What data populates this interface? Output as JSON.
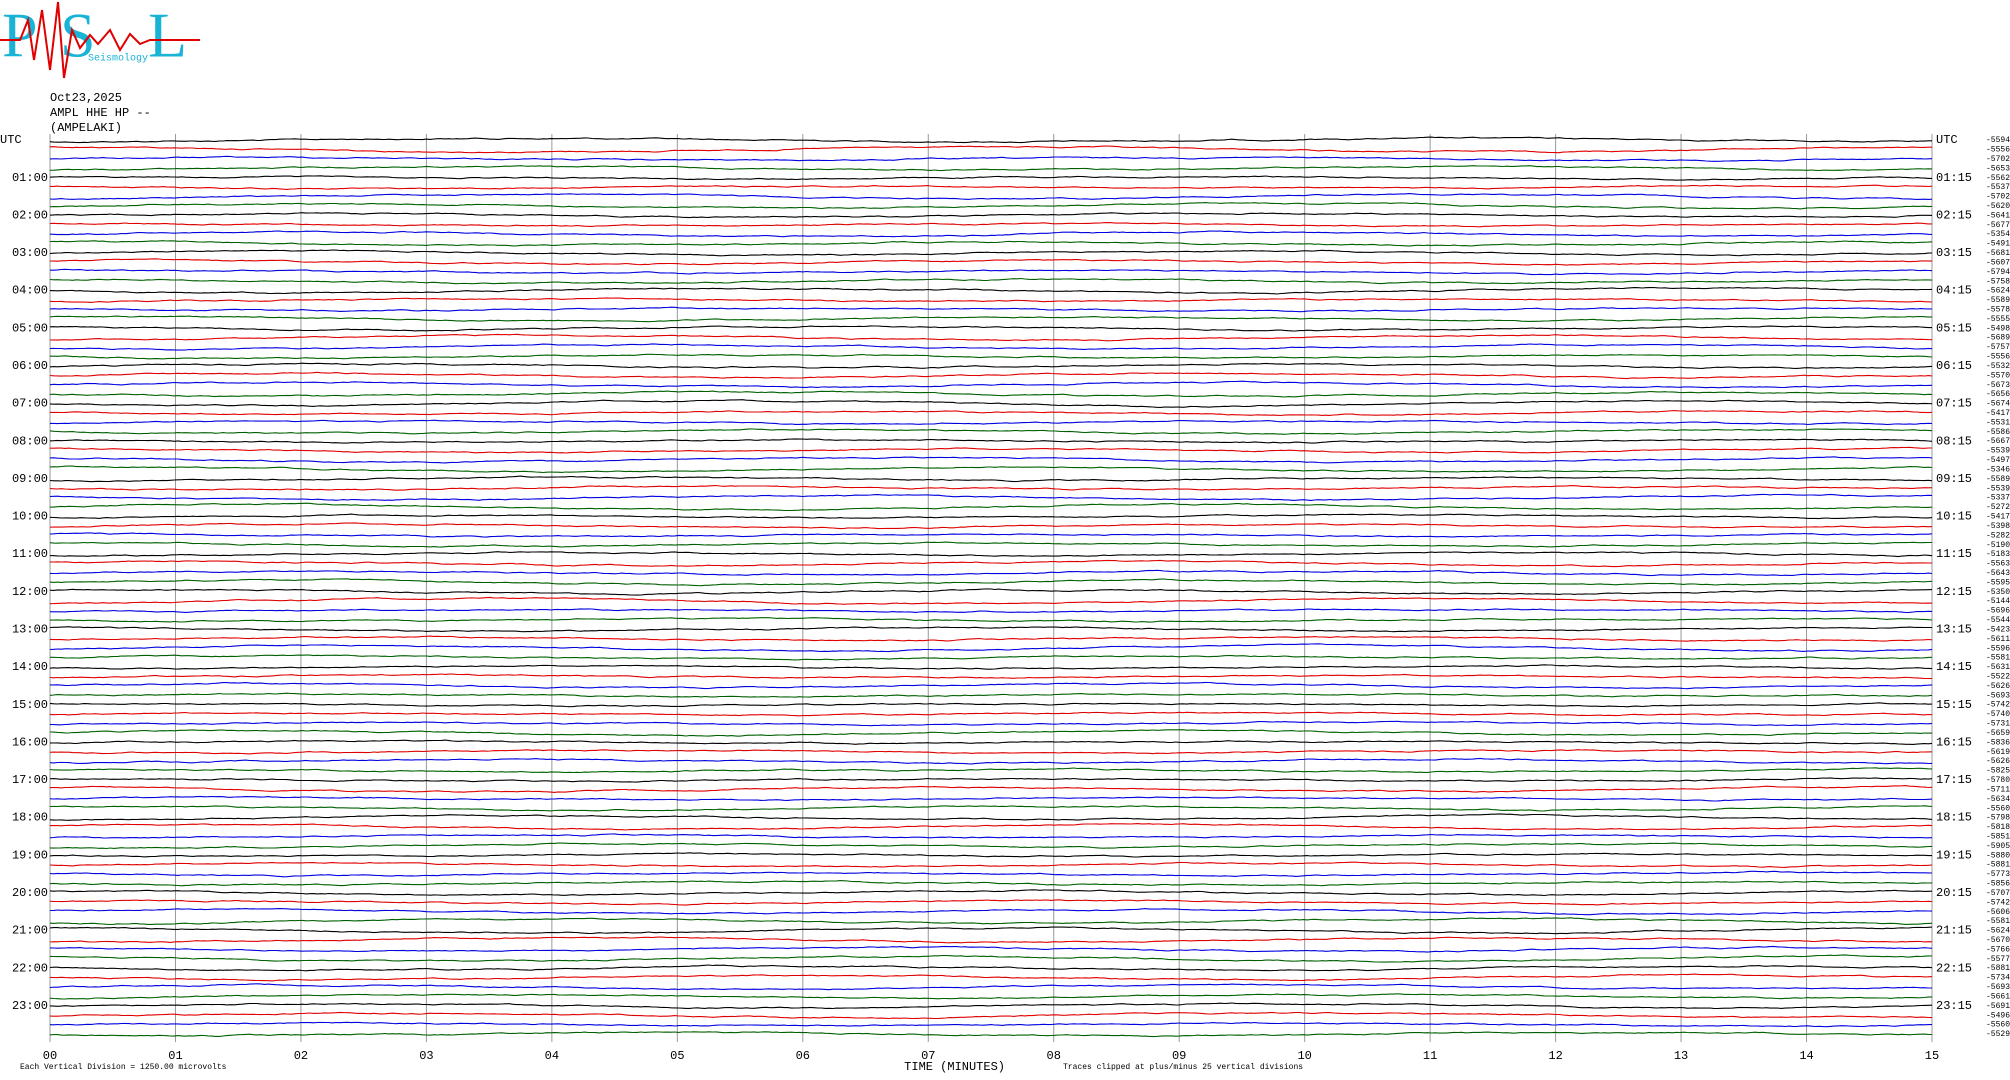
{
  "logo": {
    "letters": [
      "P",
      "S",
      "L"
    ],
    "text": "Seismology"
  },
  "header": {
    "date": "Oct23,2025",
    "channel": "AMPL HHE HP --",
    "station": "(AMPELAKI)"
  },
  "chart_data": {
    "type": "helicorder",
    "xlabel": "TIME (MINUTES)",
    "note_left": "Each Vertical Division = 1250.00 microvolts",
    "note_right": "Traces clipped at plus/minus 25 vertical divisions",
    "xlim": [
      0,
      15
    ],
    "xticks": [
      {
        "value": 0,
        "label": "00"
      },
      {
        "value": 1,
        "label": "01"
      },
      {
        "value": 2,
        "label": "02"
      },
      {
        "value": 3,
        "label": "03"
      },
      {
        "value": 4,
        "label": "04"
      },
      {
        "value": 5,
        "label": "05"
      },
      {
        "value": 6,
        "label": "06"
      },
      {
        "value": 7,
        "label": "07"
      },
      {
        "value": 8,
        "label": "08"
      },
      {
        "value": 9,
        "label": "09"
      },
      10,
      11,
      12,
      13,
      14,
      15
    ],
    "grid": true,
    "colors": [
      "#000000",
      "#e00000",
      "#0000e0",
      "#006000"
    ],
    "left_labels": [
      "UTC",
      "01:00",
      "02:00",
      "03:00",
      "04:00",
      "05:00",
      "06:00",
      "07:00",
      "08:00",
      "09:00",
      "10:00",
      "11:00",
      "12:00",
      "13:00",
      "14:00",
      "15:00",
      "16:00",
      "17:00",
      "18:00",
      "19:00",
      "20:00",
      "21:00",
      "22:00",
      "23:00"
    ],
    "right_labels": [
      "UTC",
      "01:15",
      "02:15",
      "03:15",
      "04:15",
      "05:15",
      "06:15",
      "07:15",
      "08:15",
      "09:15",
      "10:15",
      "11:15",
      "12:15",
      "13:15",
      "14:15",
      "15:15",
      "16:15",
      "17:15",
      "18:15",
      "19:15",
      "20:15",
      "21:15",
      "22:15",
      "23:15"
    ],
    "trace_labels": [
      "-5594",
      "-5556",
      "-5702",
      "-5653",
      "-5562",
      "-5537",
      "-5702",
      "-5620",
      "-5641",
      "-5677",
      "-5354",
      "-5491",
      "-5681",
      "-5607",
      "-5794",
      "-5758",
      "-5624",
      "-5589",
      "-5578",
      "-5555",
      "-5498",
      "-5689",
      "-5757",
      "-5556",
      "-5532",
      "-5570",
      "-5673",
      "-5656",
      "-5674",
      "-5417",
      "-5531",
      "-5586",
      "-5667",
      "-5539",
      "-5497",
      "-5346",
      "-5589",
      "-5539",
      "-5337",
      "-5272",
      "-5417",
      "-5398",
      "-5282",
      "-5190",
      "-5183",
      "-5563",
      "-5643",
      "-5595",
      "-5350",
      "-5144",
      "-5696",
      "-5544",
      "-5423",
      "-5611",
      "-5596",
      "-5581",
      "-5631",
      "-5522",
      "-5626",
      "-5693",
      "-5742",
      "-5740",
      "-5731",
      "-5659",
      "-5836",
      "-5619",
      "-5626",
      "-5825",
      "-5780",
      "-5711",
      "-5634",
      "-5560",
      "-5798",
      "-5818",
      "-5851",
      "-5905",
      "-5880",
      "-5881",
      "-5773",
      "-5856",
      "-5707",
      "-5742",
      "-5606",
      "-5581",
      "-5624",
      "-5670",
      "-5766",
      "-5577",
      "-5881",
      "-5734",
      "-5693",
      "-5661",
      "-5691",
      "-5496",
      "-5560",
      "-5529"
    ]
  }
}
